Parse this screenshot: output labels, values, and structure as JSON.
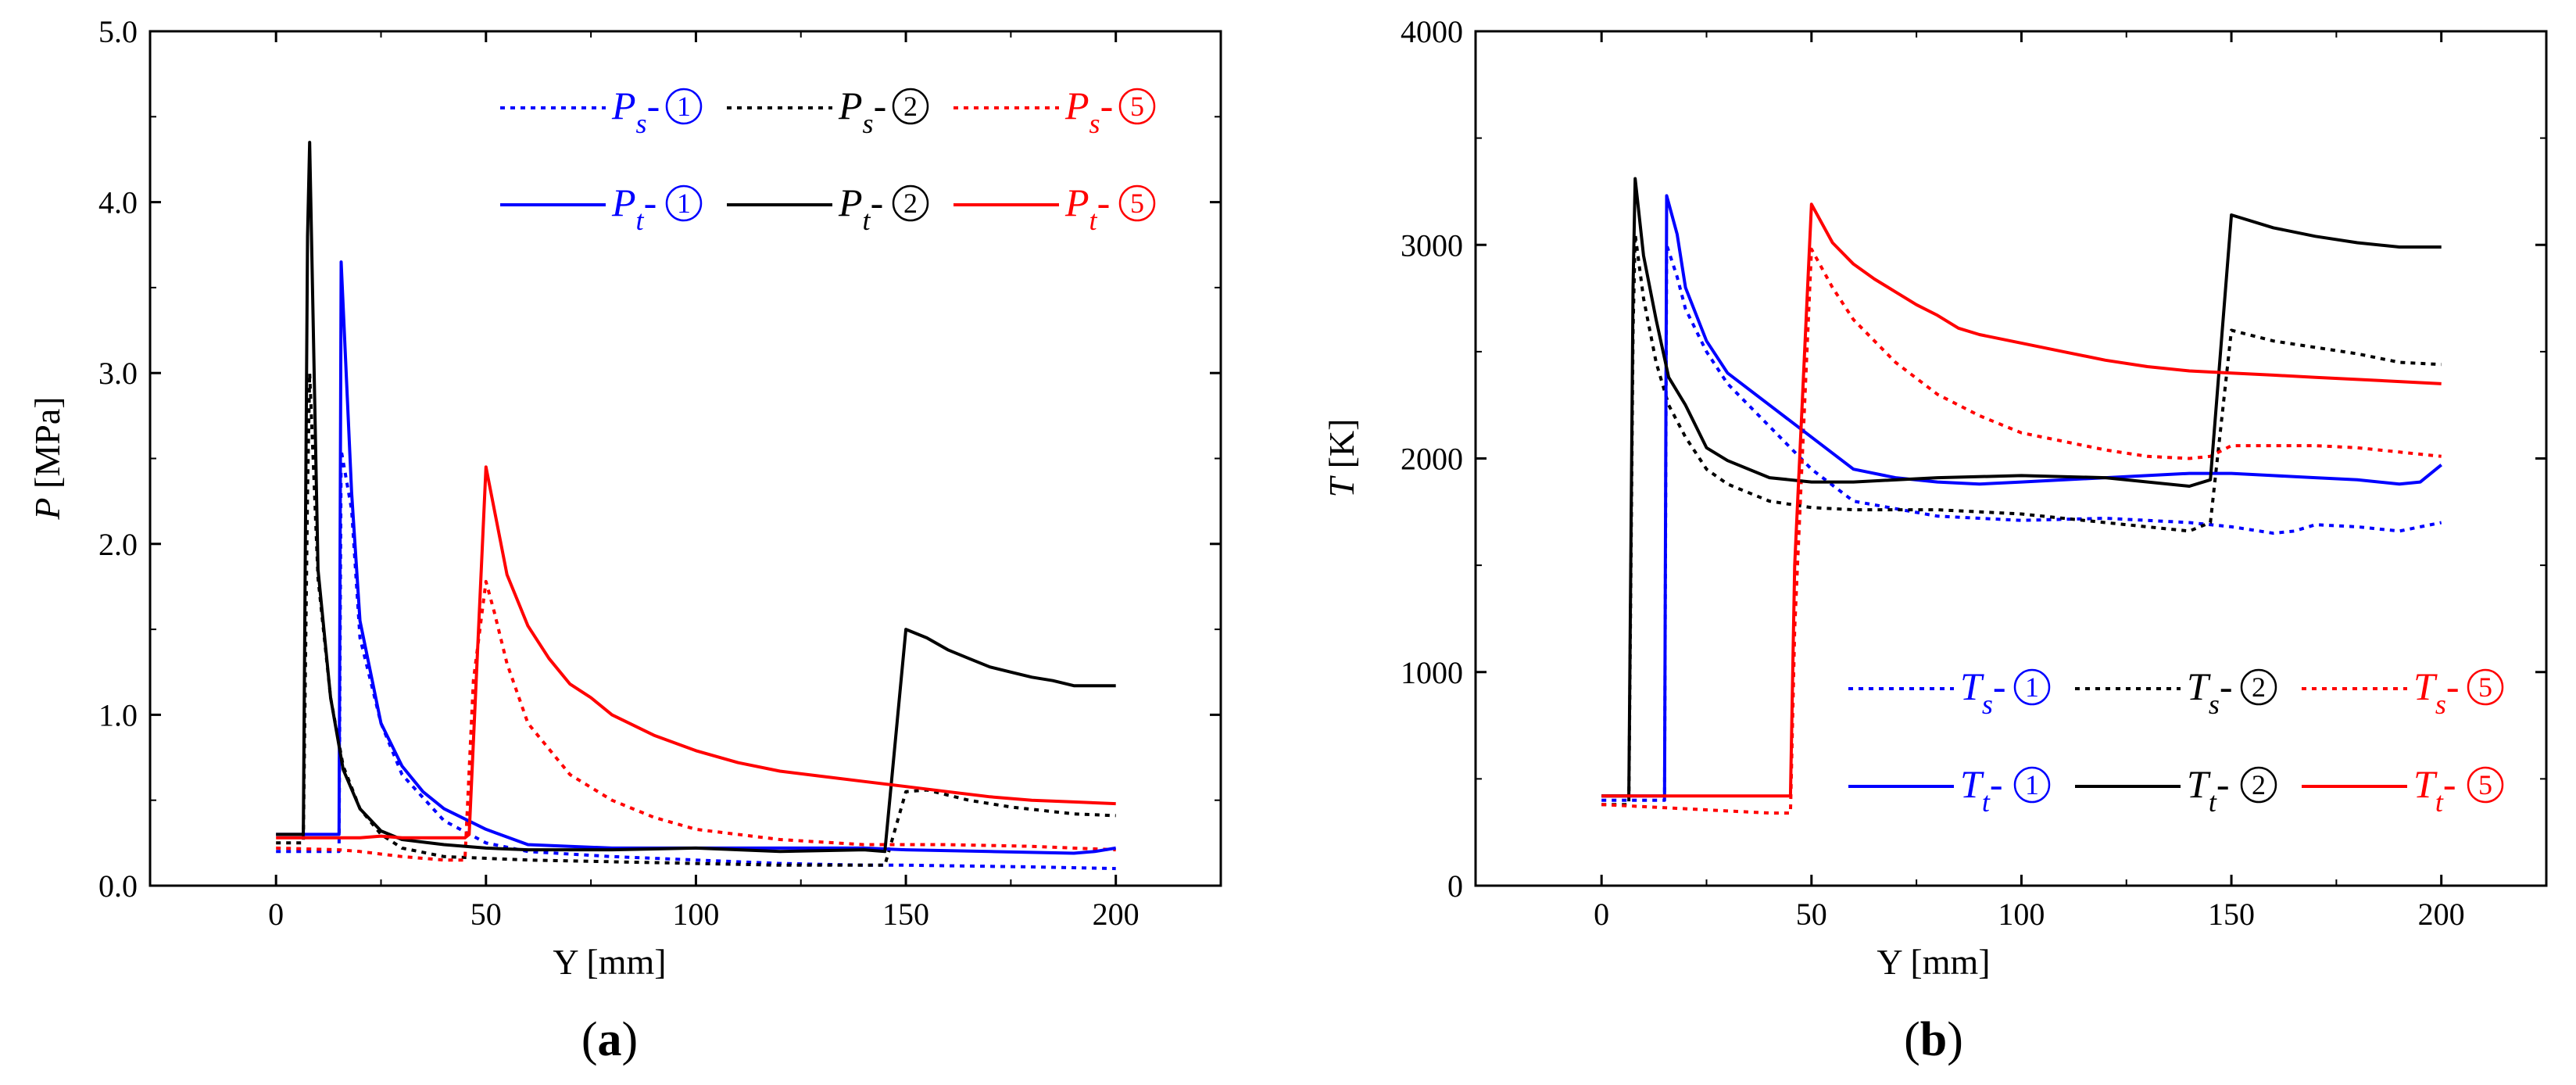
{
  "chart_data": [
    {
      "type": "line",
      "panel_label": "a",
      "xlabel": "Y [mm]",
      "ylabel_var": "P",
      "ylabel_unit": "[MPa]",
      "xlim": [
        -30,
        225
      ],
      "ylim": [
        0,
        5
      ],
      "xticks": [
        0,
        50,
        100,
        150,
        200
      ],
      "xtick_labels": [
        "0",
        "50",
        "100",
        "150",
        "200"
      ],
      "yticks": [
        0,
        1,
        2,
        3,
        4,
        5
      ],
      "ytick_labels": [
        "0.0",
        "1.0",
        "2.0",
        "3.0",
        "4.0",
        "5.0"
      ],
      "legend_position": "top-right",
      "series": [
        {
          "name": "Ps-①",
          "sym": "P",
          "sub": "s",
          "circle": "1",
          "color": "#0000ff",
          "style": "dotted",
          "x": [
            0,
            15,
            15.5,
            18,
            20,
            25,
            30,
            40,
            50,
            60,
            80,
            100,
            120,
            140,
            145,
            150,
            180,
            200
          ],
          "y": [
            0.2,
            0.2,
            2.55,
            2.2,
            1.45,
            0.95,
            0.65,
            0.38,
            0.25,
            0.2,
            0.17,
            0.15,
            0.13,
            0.12,
            0.12,
            0.12,
            0.11,
            0.1
          ]
        },
        {
          "name": "Ps-②",
          "sym": "P",
          "sub": "s",
          "circle": "2",
          "color": "#000000",
          "style": "dotted",
          "x": [
            0,
            6.5,
            7.5,
            8,
            10,
            13,
            16,
            20,
            25,
            30,
            40,
            60,
            80,
            100,
            120,
            140,
            145,
            150,
            155,
            165,
            175,
            190,
            200
          ],
          "y": [
            0.25,
            0.25,
            2.3,
            3.0,
            1.8,
            1.1,
            0.7,
            0.45,
            0.3,
            0.22,
            0.17,
            0.15,
            0.14,
            0.13,
            0.12,
            0.12,
            0.12,
            0.55,
            0.56,
            0.5,
            0.46,
            0.42,
            0.41
          ]
        },
        {
          "name": "Ps-⑤",
          "sym": "P",
          "sub": "s",
          "circle": "5",
          "color": "#ff0000",
          "style": "dotted",
          "x": [
            0,
            15,
            20,
            30,
            40,
            45,
            47,
            50,
            52,
            55,
            60,
            70,
            80,
            90,
            100,
            120,
            140,
            160,
            180,
            200
          ],
          "y": [
            0.22,
            0.21,
            0.2,
            0.17,
            0.15,
            0.15,
            1.2,
            1.78,
            1.6,
            1.3,
            0.95,
            0.65,
            0.5,
            0.4,
            0.33,
            0.27,
            0.24,
            0.24,
            0.23,
            0.21
          ]
        },
        {
          "name": "Pt-①",
          "sym": "P",
          "sub": "t",
          "circle": "1",
          "color": "#0000ff",
          "style": "solid",
          "x": [
            0,
            15,
            15.5,
            18,
            20,
            25,
            30,
            35,
            40,
            50,
            60,
            70,
            80,
            100,
            120,
            140,
            150,
            170,
            190,
            195,
            200
          ],
          "y": [
            0.3,
            0.3,
            3.65,
            2.3,
            1.55,
            0.95,
            0.7,
            0.55,
            0.45,
            0.33,
            0.24,
            0.23,
            0.22,
            0.22,
            0.22,
            0.22,
            0.21,
            0.2,
            0.19,
            0.2,
            0.22
          ]
        },
        {
          "name": "Pt-②",
          "sym": "P",
          "sub": "t",
          "circle": "2",
          "color": "#000000",
          "style": "solid",
          "x": [
            0,
            6.5,
            7.5,
            8,
            10,
            13,
            16,
            20,
            25,
            30,
            40,
            50,
            60,
            80,
            100,
            120,
            140,
            145,
            150,
            155,
            160,
            165,
            170,
            175,
            180,
            185,
            190,
            195,
            200
          ],
          "y": [
            0.3,
            0.3,
            3.8,
            4.35,
            1.85,
            1.1,
            0.68,
            0.45,
            0.32,
            0.27,
            0.24,
            0.22,
            0.21,
            0.21,
            0.22,
            0.2,
            0.21,
            0.2,
            1.5,
            1.45,
            1.38,
            1.33,
            1.28,
            1.25,
            1.22,
            1.2,
            1.17,
            1.17,
            1.17
          ]
        },
        {
          "name": "Pt-⑤",
          "sym": "P",
          "sub": "t",
          "circle": "5",
          "color": "#ff0000",
          "style": "solid",
          "x": [
            0,
            15,
            20,
            25,
            30,
            35,
            40,
            45,
            46,
            50,
            55,
            60,
            65,
            70,
            75,
            80,
            90,
            100,
            110,
            120,
            130,
            140,
            150,
            160,
            170,
            180,
            190,
            200
          ],
          "y": [
            0.28,
            0.28,
            0.28,
            0.29,
            0.28,
            0.28,
            0.28,
            0.28,
            0.3,
            2.45,
            1.82,
            1.52,
            1.33,
            1.18,
            1.1,
            1.0,
            0.88,
            0.79,
            0.72,
            0.67,
            0.64,
            0.61,
            0.58,
            0.55,
            0.52,
            0.5,
            0.49,
            0.48
          ]
        }
      ]
    },
    {
      "type": "line",
      "panel_label": "b",
      "xlabel": "Y [mm]",
      "ylabel_var": "T",
      "ylabel_unit": "[K]",
      "xlim": [
        -30,
        225
      ],
      "ylim": [
        0,
        4000
      ],
      "xticks": [
        0,
        50,
        100,
        150,
        200
      ],
      "xtick_labels": [
        "0",
        "50",
        "100",
        "150",
        "200"
      ],
      "yticks": [
        0,
        1000,
        2000,
        3000,
        4000
      ],
      "ytick_labels": [
        "0",
        "1000",
        "2000",
        "3000",
        "4000"
      ],
      "legend_position": "bottom-right",
      "series": [
        {
          "name": "Ts-①",
          "sym": "T",
          "sub": "s",
          "circle": "1",
          "color": "#0000ff",
          "style": "dotted",
          "x": [
            0,
            15,
            15.5,
            18,
            20,
            25,
            30,
            40,
            50,
            60,
            80,
            100,
            120,
            140,
            150,
            160,
            165,
            170,
            180,
            190,
            200
          ],
          "y": [
            400,
            400,
            3000,
            2850,
            2700,
            2500,
            2350,
            2150,
            1950,
            1800,
            1730,
            1710,
            1720,
            1700,
            1680,
            1650,
            1660,
            1690,
            1680,
            1660,
            1700
          ]
        },
        {
          "name": "Ts-②",
          "sym": "T",
          "sub": "s",
          "circle": "2",
          "color": "#000000",
          "style": "dotted",
          "x": [
            0,
            6.5,
            7.5,
            8,
            10,
            13,
            16,
            20,
            25,
            30,
            40,
            50,
            60,
            80,
            100,
            120,
            140,
            145,
            150,
            160,
            170,
            180,
            190,
            200
          ],
          "y": [
            380,
            380,
            2600,
            3050,
            2750,
            2450,
            2250,
            2100,
            1950,
            1880,
            1800,
            1770,
            1760,
            1760,
            1740,
            1700,
            1660,
            1700,
            2600,
            2550,
            2520,
            2490,
            2450,
            2440
          ]
        },
        {
          "name": "Ts-⑤",
          "sym": "T",
          "sub": "s",
          "circle": "5",
          "color": "#ff0000",
          "style": "dotted",
          "x": [
            0,
            10,
            20,
            30,
            40,
            45,
            46,
            50,
            55,
            60,
            70,
            80,
            90,
            100,
            110,
            120,
            130,
            140,
            145,
            150,
            160,
            170,
            180,
            190,
            200
          ],
          "y": [
            380,
            370,
            360,
            350,
            340,
            340,
            1200,
            2980,
            2800,
            2650,
            2450,
            2300,
            2200,
            2120,
            2080,
            2040,
            2010,
            2000,
            2010,
            2060,
            2060,
            2060,
            2050,
            2030,
            2010
          ]
        },
        {
          "name": "Tt-①",
          "sym": "T",
          "sub": "t",
          "circle": "1",
          "color": "#0000ff",
          "style": "solid",
          "x": [
            0,
            15,
            15.5,
            18,
            20,
            25,
            30,
            40,
            50,
            60,
            70,
            80,
            90,
            100,
            120,
            140,
            150,
            160,
            170,
            180,
            190,
            195,
            200
          ],
          "y": [
            420,
            420,
            3230,
            3050,
            2800,
            2550,
            2400,
            2250,
            2100,
            1950,
            1910,
            1890,
            1880,
            1890,
            1910,
            1930,
            1930,
            1920,
            1910,
            1900,
            1880,
            1890,
            1970
          ]
        },
        {
          "name": "Tt-②",
          "sym": "T",
          "sub": "t",
          "circle": "2",
          "color": "#000000",
          "style": "solid",
          "x": [
            0,
            6.5,
            7.5,
            8,
            10,
            13,
            16,
            20,
            25,
            30,
            40,
            50,
            60,
            80,
            100,
            120,
            140,
            145,
            150,
            160,
            170,
            180,
            190,
            200
          ],
          "y": [
            420,
            420,
            2800,
            3310,
            2950,
            2650,
            2380,
            2250,
            2050,
            1990,
            1910,
            1890,
            1890,
            1910,
            1920,
            1910,
            1870,
            1900,
            3140,
            3080,
            3040,
            3010,
            2990,
            2990
          ]
        },
        {
          "name": "Tt-⑤",
          "sym": "T",
          "sub": "t",
          "circle": "5",
          "color": "#ff0000",
          "style": "solid",
          "x": [
            0,
            10,
            20,
            30,
            40,
            45,
            46,
            50,
            55,
            60,
            65,
            70,
            75,
            80,
            85,
            90,
            100,
            110,
            120,
            130,
            140,
            150,
            160,
            170,
            180,
            190,
            200
          ],
          "y": [
            420,
            420,
            420,
            420,
            420,
            420,
            1500,
            3190,
            3010,
            2910,
            2840,
            2780,
            2720,
            2670,
            2610,
            2580,
            2540,
            2500,
            2460,
            2430,
            2410,
            2400,
            2390,
            2380,
            2370,
            2360,
            2350
          ]
        }
      ]
    }
  ]
}
